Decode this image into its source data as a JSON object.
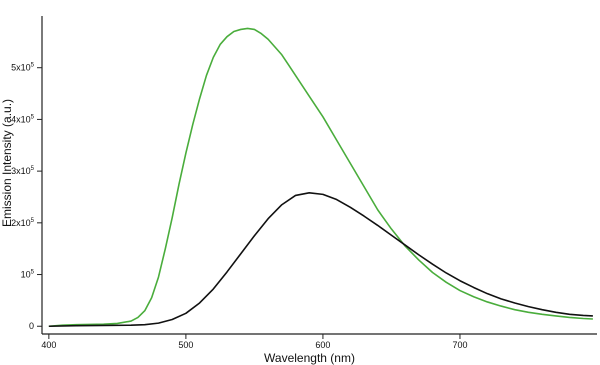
{
  "chart_data": {
    "type": "line",
    "title": "",
    "xlabel": "Wavelength (nm)",
    "ylabel": "Emission Intensity (a.u.)",
    "xlim": [
      395,
      800
    ],
    "ylim": [
      -15000,
      600000
    ],
    "grid": false,
    "x_ticks": [
      400,
      500,
      600,
      700
    ],
    "x_tick_labels": [
      "400",
      "500",
      "600",
      "700"
    ],
    "y_ticks": [
      0,
      100000,
      200000,
      300000,
      400000,
      500000
    ],
    "y_tick_labels": [
      {
        "base": "0",
        "exp": ""
      },
      {
        "base": "10",
        "exp": "5"
      },
      {
        "base": "2x10",
        "exp": "5"
      },
      {
        "base": "3x10",
        "exp": "5"
      },
      {
        "base": "4x10",
        "exp": "5"
      },
      {
        "base": "5x10",
        "exp": "5"
      }
    ],
    "series": [
      {
        "color": "#4aad3c",
        "x": [
          400,
          410,
          420,
          430,
          440,
          450,
          460,
          465,
          470,
          475,
          480,
          485,
          490,
          495,
          500,
          505,
          510,
          515,
          520,
          525,
          530,
          535,
          540,
          545,
          550,
          555,
          560,
          565,
          570,
          575,
          580,
          585,
          590,
          600,
          610,
          620,
          630,
          640,
          650,
          660,
          670,
          680,
          690,
          700,
          710,
          720,
          730,
          740,
          750,
          760,
          770,
          780,
          790,
          797
        ],
        "values": [
          0,
          2000,
          3000,
          3500,
          4000,
          5500,
          10000,
          17000,
          30000,
          55000,
          95000,
          150000,
          210000,
          275000,
          335000,
          390000,
          440000,
          485000,
          520000,
          545000,
          560000,
          570000,
          574000,
          576000,
          574000,
          566000,
          555000,
          540000,
          525000,
          505000,
          485000,
          465000,
          445000,
          405000,
          360000,
          315000,
          270000,
          225000,
          188000,
          155000,
          128000,
          104000,
          85000,
          69000,
          57000,
          47000,
          39000,
          32000,
          27000,
          23000,
          20000,
          17000,
          15000,
          14000
        ]
      },
      {
        "color": "#111111",
        "x": [
          400,
          420,
          440,
          460,
          470,
          480,
          490,
          500,
          510,
          520,
          530,
          540,
          550,
          560,
          570,
          580,
          590,
          600,
          610,
          620,
          630,
          640,
          650,
          660,
          670,
          680,
          690,
          700,
          710,
          720,
          730,
          740,
          750,
          760,
          770,
          780,
          790,
          797
        ],
        "values": [
          0,
          1000,
          1500,
          2000,
          3000,
          6000,
          13000,
          25000,
          45000,
          72000,
          105000,
          140000,
          175000,
          208000,
          235000,
          253000,
          258000,
          255000,
          245000,
          230000,
          213000,
          195000,
          176000,
          157000,
          138000,
          120000,
          103000,
          88000,
          75000,
          63000,
          53000,
          45000,
          38000,
          32000,
          27000,
          23000,
          21000,
          20000
        ]
      }
    ]
  }
}
